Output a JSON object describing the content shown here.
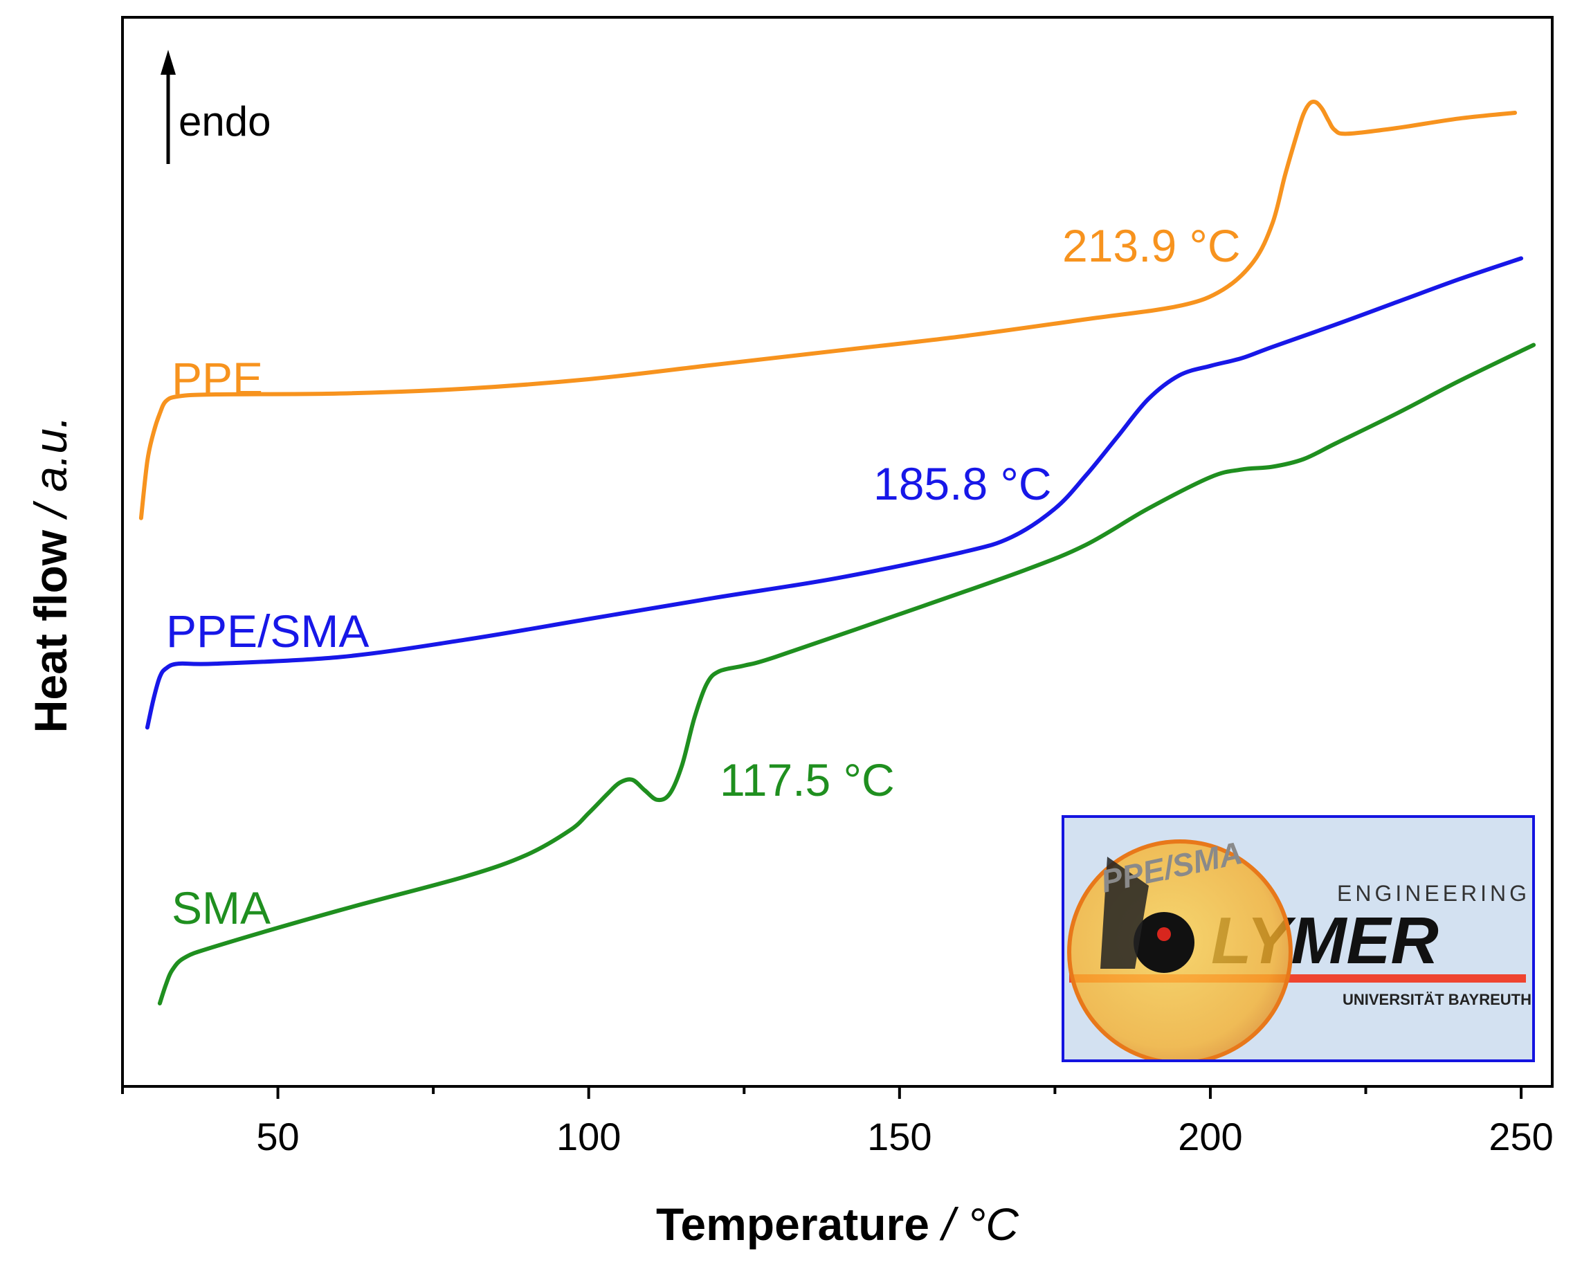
{
  "chart_data": {
    "type": "line",
    "title": "",
    "xlabel_bold": "Temperature",
    "xlabel_unit": " / °C",
    "ylabel_bold": "Heat flow",
    "ylabel_unit": " / a.u.",
    "xlim": [
      25,
      255
    ],
    "xticks": [
      50,
      100,
      150,
      200,
      250
    ],
    "xtick_labels": [
      "50",
      "100",
      "150",
      "200",
      "250"
    ],
    "ylim": [
      0,
      100
    ],
    "yticks_shown": false,
    "endo_label": "endo",
    "series": [
      {
        "name": "PPE",
        "color": "#f7931e",
        "transition_label": "213.9 °C",
        "points": [
          [
            28,
            55
          ],
          [
            29,
            61
          ],
          [
            30,
            64
          ],
          [
            31,
            66
          ],
          [
            32,
            67.3
          ],
          [
            34,
            67.8
          ],
          [
            40,
            68
          ],
          [
            60,
            68.1
          ],
          [
            80,
            68.6
          ],
          [
            100,
            69.6
          ],
          [
            120,
            71.1
          ],
          [
            140,
            72.6
          ],
          [
            160,
            74.1
          ],
          [
            180,
            75.9
          ],
          [
            195,
            77.3
          ],
          [
            202,
            79
          ],
          [
            207,
            82
          ],
          [
            210,
            86
          ],
          [
            212,
            91
          ],
          [
            214,
            95.5
          ],
          [
            215,
            97.5
          ],
          [
            216,
            98.6
          ],
          [
            217,
            98.7
          ],
          [
            218,
            98
          ],
          [
            219,
            96.8
          ],
          [
            220,
            95.8
          ],
          [
            222,
            95.4
          ],
          [
            230,
            96
          ],
          [
            240,
            97
          ],
          [
            249,
            97.6
          ]
        ]
      },
      {
        "name": "PPE/SMA",
        "color": "#1717e8",
        "transition_label": "185.8 °C",
        "points": [
          [
            29,
            33
          ],
          [
            30,
            36
          ],
          [
            31,
            38.3
          ],
          [
            32,
            39.2
          ],
          [
            34,
            39.7
          ],
          [
            40,
            39.7
          ],
          [
            60,
            40.4
          ],
          [
            80,
            42.2
          ],
          [
            100,
            44.4
          ],
          [
            120,
            46.6
          ],
          [
            140,
            48.7
          ],
          [
            160,
            51.4
          ],
          [
            168,
            53
          ],
          [
            175,
            56
          ],
          [
            180,
            59.5
          ],
          [
            185,
            63.5
          ],
          [
            190,
            67.5
          ],
          [
            195,
            70
          ],
          [
            200,
            71
          ],
          [
            205,
            71.8
          ],
          [
            210,
            73
          ],
          [
            220,
            75.3
          ],
          [
            230,
            77.7
          ],
          [
            240,
            80.1
          ],
          [
            250,
            82.3
          ]
        ]
      },
      {
        "name": "SMA",
        "color": "#1f8f1f",
        "transition_label": "117.5 °C",
        "points": [
          [
            31,
            4
          ],
          [
            32,
            6
          ],
          [
            33,
            7.5
          ],
          [
            35,
            8.8
          ],
          [
            40,
            10
          ],
          [
            60,
            13.8
          ],
          [
            80,
            17.3
          ],
          [
            90,
            19.6
          ],
          [
            97,
            22.2
          ],
          [
            100,
            24
          ],
          [
            103,
            26
          ],
          [
            105,
            27.2
          ],
          [
            107,
            27.5
          ],
          [
            109,
            26.4
          ],
          [
            111,
            25.4
          ],
          [
            113,
            26
          ],
          [
            115,
            29
          ],
          [
            117,
            34
          ],
          [
            119,
            37.6
          ],
          [
            121,
            38.9
          ],
          [
            125,
            39.5
          ],
          [
            130,
            40.4
          ],
          [
            150,
            44.9
          ],
          [
            170,
            49.5
          ],
          [
            180,
            52.2
          ],
          [
            190,
            56
          ],
          [
            200,
            59.3
          ],
          [
            205,
            60.1
          ],
          [
            210,
            60.4
          ],
          [
            215,
            61.2
          ],
          [
            220,
            62.8
          ],
          [
            230,
            66
          ],
          [
            240,
            69.4
          ],
          [
            252,
            73.2
          ]
        ]
      }
    ]
  },
  "inset": {
    "disc_text": "PPE/SMA",
    "logo_top": "ENGINEERING",
    "logo_main": "LYMER",
    "logo_bottom": "UNIVERSITÄT BAYREUTH"
  }
}
